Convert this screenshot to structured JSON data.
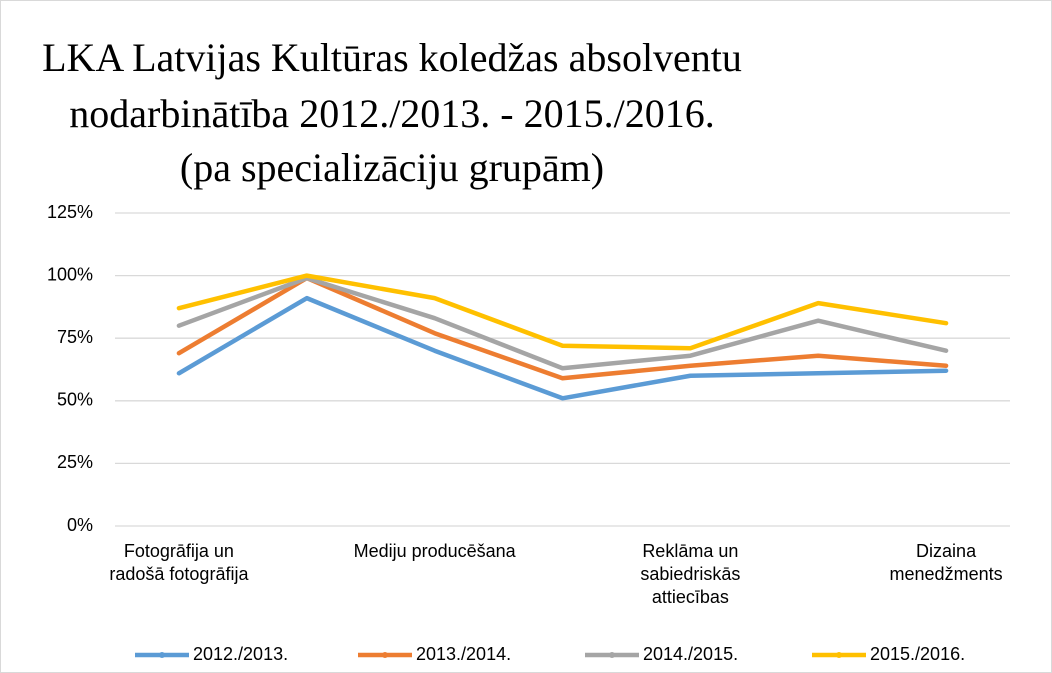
{
  "chart_data": {
    "type": "line",
    "title": [
      "LKA Latvijas Kultūras koledžas absolventu",
      "nodarbinātība 2012./2013. - 2015./2016.",
      "(pa specializāciju grupām)"
    ],
    "categories": [
      "Fotogrāfija un radošā fotogrāfija",
      null,
      "Mediju producēšana",
      null,
      "Reklāma un sabiedriskās attiecības",
      null,
      "Dizaina menedžments"
    ],
    "series": [
      {
        "name": "2012./2013.",
        "color": "#5b9bd5",
        "values": [
          61,
          91,
          70,
          51,
          60,
          61,
          62
        ]
      },
      {
        "name": "2013./2014.",
        "color": "#ed7d31",
        "values": [
          69,
          99,
          77,
          59,
          64,
          68,
          64
        ]
      },
      {
        "name": "2014./2015.",
        "color": "#a5a5a5",
        "values": [
          80,
          99,
          83,
          63,
          68,
          82,
          70
        ]
      },
      {
        "name": "2015./2016.",
        "color": "#ffc000",
        "values": [
          87,
          100,
          91,
          72,
          71,
          89,
          81
        ]
      }
    ],
    "ylim": [
      0,
      125
    ],
    "yticks": [
      {
        "value": 0,
        "label": "0%"
      },
      {
        "value": 25,
        "label": "25%"
      },
      {
        "value": 50,
        "label": "50%"
      },
      {
        "value": 75,
        "label": "75%"
      },
      {
        "value": 100,
        "label": "100%"
      },
      {
        "value": 125,
        "label": "125%"
      }
    ],
    "grid": true,
    "legend": "bottom"
  }
}
